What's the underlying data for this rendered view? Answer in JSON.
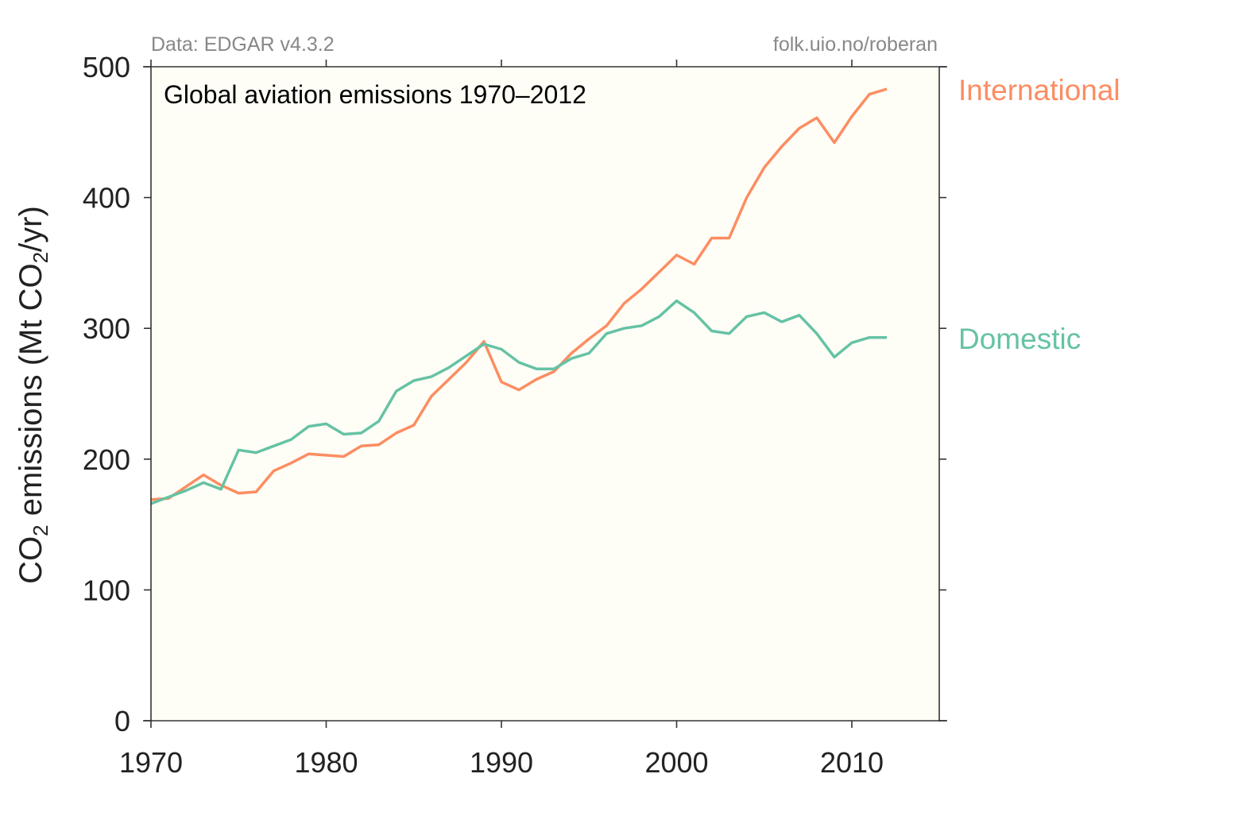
{
  "chart_data": {
    "type": "line",
    "title": "Global aviation emissions  1970–2012",
    "credit_left": "Data: EDGAR v4.3.2",
    "credit_right": "folk.uio.no/roberan",
    "xlabel": "",
    "ylabel_parts": {
      "pre": "CO",
      "sub1": "2",
      "mid": " emissions (Mt CO",
      "sub2": "2",
      "post": "/yr)"
    },
    "xlim": [
      1970,
      2015
    ],
    "ylim": [
      0,
      500
    ],
    "xticks": [
      1970,
      1980,
      1990,
      2000,
      2010
    ],
    "xtick_labels": [
      "1970",
      "1980",
      "1990",
      "2000",
      "2010"
    ],
    "yticks": [
      0,
      100,
      200,
      300,
      400,
      500
    ],
    "ytick_labels": [
      "0",
      "100",
      "200",
      "300",
      "400",
      "500"
    ],
    "grid": false,
    "legend": "direct labels at right of plot",
    "plot_background": "#fffef6",
    "x": [
      1970,
      1971,
      1972,
      1973,
      1974,
      1975,
      1976,
      1977,
      1978,
      1979,
      1980,
      1981,
      1982,
      1983,
      1984,
      1985,
      1986,
      1987,
      1988,
      1989,
      1990,
      1991,
      1992,
      1993,
      1994,
      1995,
      1996,
      1997,
      1998,
      1999,
      2000,
      2001,
      2002,
      2003,
      2004,
      2005,
      2006,
      2007,
      2008,
      2009,
      2010,
      2011,
      2012
    ],
    "series": [
      {
        "name": "International",
        "color": "#fc8d62",
        "values": [
          169,
          170,
          179,
          188,
          180,
          174,
          175,
          191,
          197,
          204,
          203,
          202,
          210,
          211,
          220,
          226,
          248,
          261,
          274,
          290,
          259,
          253,
          261,
          267,
          281,
          292,
          302,
          319,
          330,
          343,
          356,
          349,
          369,
          369,
          400,
          423,
          439,
          453,
          461,
          442,
          462,
          479,
          483
        ]
      },
      {
        "name": "Domestic",
        "color": "#66c2a5",
        "values": [
          166,
          171,
          176,
          182,
          177,
          207,
          205,
          210,
          215,
          225,
          227,
          219,
          220,
          229,
          252,
          260,
          263,
          270,
          279,
          288,
          284,
          274,
          269,
          269,
          277,
          281,
          296,
          300,
          302,
          309,
          321,
          312,
          298,
          296,
          309,
          312,
          305,
          310,
          296,
          278,
          289,
          293,
          293
        ]
      }
    ]
  }
}
